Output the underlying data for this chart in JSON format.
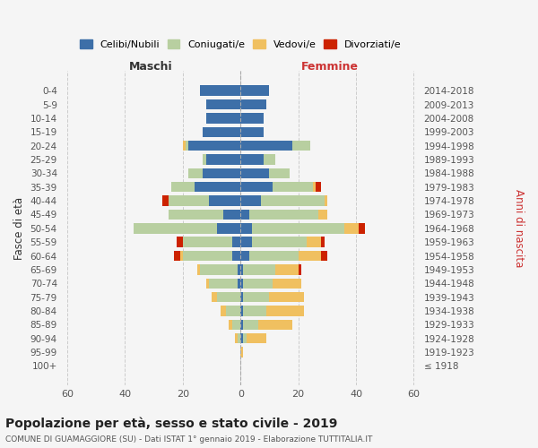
{
  "age_groups": [
    "100+",
    "95-99",
    "90-94",
    "85-89",
    "80-84",
    "75-79",
    "70-74",
    "65-69",
    "60-64",
    "55-59",
    "50-54",
    "45-49",
    "40-44",
    "35-39",
    "30-34",
    "25-29",
    "20-24",
    "15-19",
    "10-14",
    "5-9",
    "0-4"
  ],
  "birth_years": [
    "≤ 1918",
    "1919-1923",
    "1924-1928",
    "1929-1933",
    "1934-1938",
    "1939-1943",
    "1944-1948",
    "1949-1953",
    "1954-1958",
    "1959-1963",
    "1964-1968",
    "1969-1973",
    "1974-1978",
    "1979-1983",
    "1984-1988",
    "1989-1993",
    "1994-1998",
    "1999-2003",
    "2004-2008",
    "2009-2013",
    "2014-2018"
  ],
  "male": {
    "celibi": [
      0,
      0,
      0,
      0,
      0,
      0,
      1,
      1,
      3,
      3,
      8,
      6,
      11,
      16,
      13,
      12,
      18,
      13,
      12,
      12,
      14
    ],
    "coniugati": [
      0,
      0,
      1,
      3,
      5,
      8,
      10,
      13,
      17,
      17,
      29,
      19,
      14,
      8,
      5,
      1,
      1,
      0,
      0,
      0,
      0
    ],
    "vedovi": [
      0,
      0,
      1,
      1,
      2,
      2,
      1,
      1,
      1,
      0,
      0,
      0,
      0,
      0,
      0,
      0,
      1,
      0,
      0,
      0,
      0
    ],
    "divorziati": [
      0,
      0,
      0,
      0,
      0,
      0,
      0,
      0,
      2,
      2,
      0,
      0,
      2,
      0,
      0,
      0,
      0,
      0,
      0,
      0,
      0
    ]
  },
  "female": {
    "nubili": [
      0,
      0,
      1,
      1,
      1,
      1,
      1,
      1,
      3,
      4,
      4,
      3,
      7,
      11,
      10,
      8,
      18,
      8,
      8,
      9,
      10
    ],
    "coniugate": [
      0,
      0,
      1,
      5,
      8,
      9,
      10,
      11,
      17,
      19,
      32,
      24,
      22,
      14,
      7,
      4,
      6,
      0,
      0,
      0,
      0
    ],
    "vedove": [
      0,
      1,
      7,
      12,
      13,
      12,
      10,
      8,
      8,
      5,
      5,
      3,
      1,
      1,
      0,
      0,
      0,
      0,
      0,
      0,
      0
    ],
    "divorziate": [
      0,
      0,
      0,
      0,
      0,
      0,
      0,
      1,
      2,
      1,
      2,
      0,
      0,
      2,
      0,
      0,
      0,
      0,
      0,
      0,
      0
    ]
  },
  "colors": {
    "celibi": "#3d6fa8",
    "coniugati": "#b8cfa0",
    "vedovi": "#f0c060",
    "divorziati": "#cc2200"
  },
  "xlim": 62,
  "title": "Popolazione per età, sesso e stato civile - 2019",
  "subtitle": "COMUNE DI GUAMAGGIORE (SU) - Dati ISTAT 1° gennaio 2019 - Elaborazione TUTTITALIA.IT",
  "xlabel_left": "Maschi",
  "xlabel_right": "Femmine",
  "ylabel_left": "Fasce di età",
  "ylabel_right": "Anni di nascita",
  "legend_labels": [
    "Celibi/Nubili",
    "Coniugati/e",
    "Vedovi/e",
    "Divorziati/e"
  ],
  "bg_color": "#f5f5f5"
}
